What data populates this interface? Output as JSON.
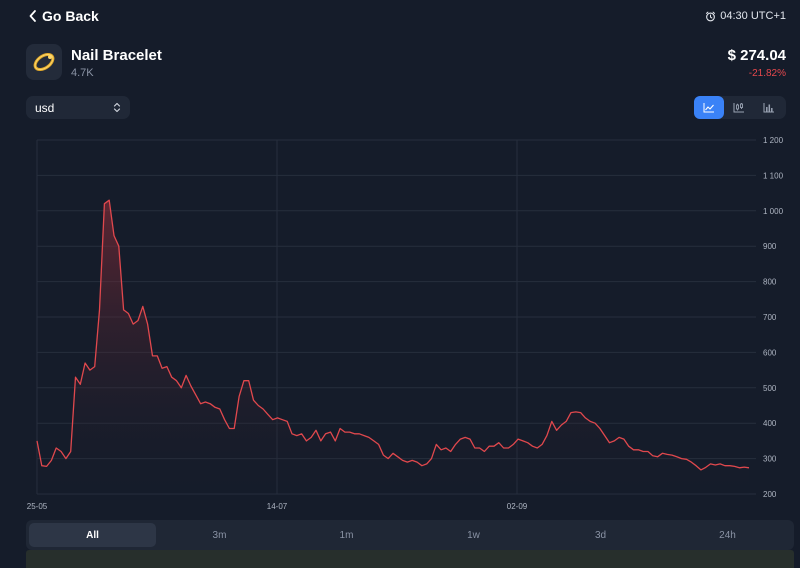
{
  "header": {
    "back_label": "Go Back",
    "time": "04:30 UTC+1"
  },
  "item": {
    "name": "Nail Bracelet",
    "count": "4.7K",
    "price": "$ 274.04",
    "change": "-21.82%"
  },
  "currency": {
    "selected": "usd"
  },
  "chart_toggle": {
    "options": [
      "line-chart-icon",
      "candlestick-icon",
      "bar-chart-icon"
    ],
    "active": "line-chart-icon"
  },
  "ranges": [
    "All",
    "3m",
    "1m",
    "1w",
    "3d",
    "24h"
  ],
  "colors": {
    "line": "#e0484d",
    "accent": "#3a82f7",
    "background": "#151c2a"
  },
  "chart_data": {
    "type": "area",
    "title": "",
    "xlabel": "",
    "ylabel": "",
    "x_tick_labels": [
      "25-05",
      "14-07",
      "02-09"
    ],
    "y_ticks": [
      200,
      300,
      400,
      500,
      600,
      700,
      800,
      900,
      1000,
      1100,
      1200
    ],
    "y_tick_labels": [
      "200",
      "300",
      "400",
      "500",
      "600",
      "700",
      "800",
      "900",
      "1 000",
      "1 100",
      "1 200"
    ],
    "ylim": [
      200,
      1200
    ],
    "y_axis_position": "right",
    "grid": true,
    "values": [
      350,
      280,
      278,
      295,
      330,
      320,
      300,
      320,
      530,
      510,
      570,
      550,
      560,
      720,
      1020,
      1030,
      930,
      900,
      720,
      710,
      680,
      690,
      730,
      680,
      590,
      590,
      555,
      560,
      530,
      520,
      500,
      535,
      505,
      480,
      455,
      460,
      455,
      445,
      440,
      410,
      385,
      385,
      475,
      520,
      520,
      465,
      450,
      440,
      425,
      410,
      415,
      410,
      405,
      370,
      365,
      370,
      350,
      360,
      380,
      350,
      370,
      375,
      350,
      385,
      375,
      375,
      370,
      370,
      365,
      360,
      350,
      340,
      310,
      300,
      315,
      305,
      295,
      290,
      295,
      290,
      280,
      285,
      300,
      340,
      325,
      330,
      320,
      340,
      355,
      360,
      355,
      330,
      330,
      320,
      335,
      335,
      345,
      330,
      330,
      340,
      355,
      350,
      345,
      335,
      330,
      340,
      365,
      405,
      380,
      395,
      405,
      430,
      432,
      430,
      415,
      405,
      400,
      385,
      365,
      345,
      350,
      360,
      355,
      335,
      325,
      325,
      320,
      320,
      308,
      305,
      315,
      312,
      310,
      305,
      300,
      298,
      290,
      280,
      268,
      275,
      285,
      282,
      285,
      280,
      280,
      278,
      274,
      276,
      274
    ]
  }
}
